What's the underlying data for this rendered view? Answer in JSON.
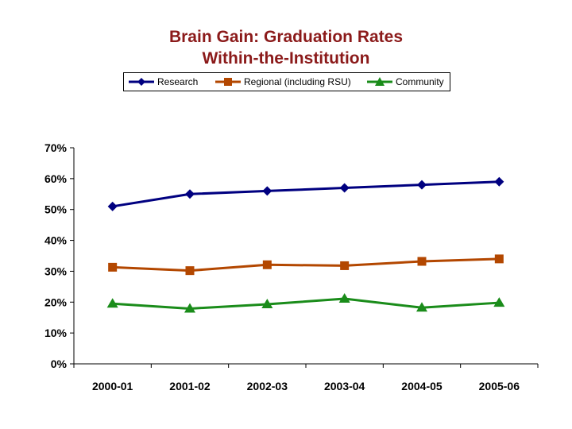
{
  "chart_data": {
    "type": "line",
    "title_line1": "Brain Gain:  Graduation Rates",
    "title_line2": "Within-the-Institution",
    "categories": [
      "2000-01",
      "2001-02",
      "2002-03",
      "2003-04",
      "2004-05",
      "2005-06"
    ],
    "yticks": [
      "0%",
      "10%",
      "20%",
      "30%",
      "40%",
      "50%",
      "60%",
      "70%"
    ],
    "ylim": [
      0,
      70
    ],
    "xlabel": "",
    "ylabel": "",
    "grid": false,
    "legend_position": "top",
    "series": [
      {
        "name": "Research",
        "color": "#000080",
        "marker": "diamond",
        "values": [
          51,
          55,
          56,
          57,
          58,
          59
        ]
      },
      {
        "name": "Regional (including RSU)",
        "color": "#b34700",
        "marker": "square",
        "values": [
          31.3,
          30.2,
          32.1,
          31.8,
          33.2,
          34
        ]
      },
      {
        "name": "Community",
        "color": "#1a8c1a",
        "marker": "triangle",
        "values": [
          19.5,
          17.9,
          19.3,
          21.1,
          18.2,
          19.8
        ]
      }
    ]
  }
}
